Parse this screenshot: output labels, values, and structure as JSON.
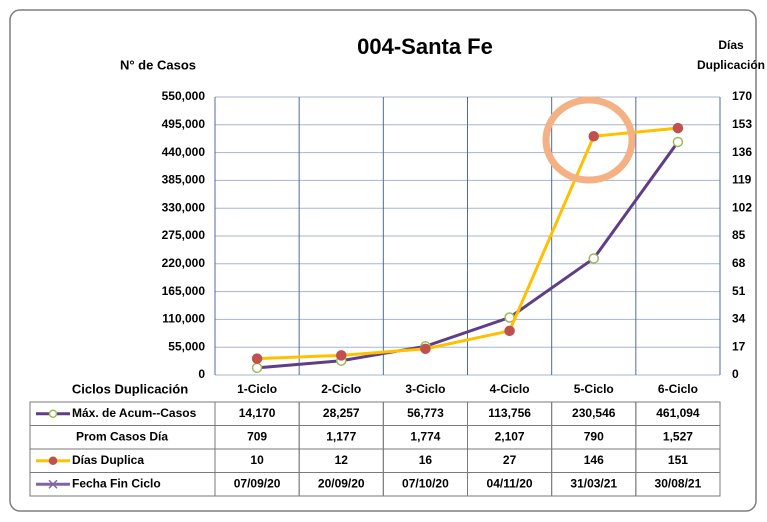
{
  "chart_data": {
    "type": "line",
    "title": "004-Santa Fe",
    "y_label": "N° de Casos",
    "y2_label": [
      "Días",
      "Duplicación"
    ],
    "table_header": "Ciclos Duplicación",
    "categories": [
      "1-Ciclo",
      "2-Ciclo",
      "3-Ciclo",
      "4-Ciclo",
      "5-Ciclo",
      "6-Ciclo"
    ],
    "ylim": [
      0,
      550000
    ],
    "yticks": [
      {
        "value": 0,
        "label": "0"
      },
      {
        "value": 55000,
        "label": "55,000"
      },
      {
        "value": 110000,
        "label": "110,000"
      },
      {
        "value": 165000,
        "label": "165,000"
      },
      {
        "value": 220000,
        "label": "220,000"
      },
      {
        "value": 275000,
        "label": "275,000"
      },
      {
        "value": 330000,
        "label": "330,000"
      },
      {
        "value": 385000,
        "label": "385,000"
      },
      {
        "value": 440000,
        "label": "440,000"
      },
      {
        "value": 495000,
        "label": "495,000"
      },
      {
        "value": 550000,
        "label": "550,000"
      }
    ],
    "y2lim": [
      0,
      170
    ],
    "y2ticks": [
      0,
      17,
      34,
      51,
      68,
      85,
      102,
      119,
      136,
      153,
      170
    ],
    "series": [
      {
        "name": "Máx. de Acum--Casos",
        "color": "#5e3f86",
        "marker_color": "#9bbb59",
        "axis": "y",
        "values": [
          14170,
          28257,
          56773,
          113756,
          230546,
          461094
        ],
        "value_labels": [
          "14,170",
          "28,257",
          "56,773",
          "113,756",
          "230,546",
          "461,094"
        ]
      },
      {
        "name": "Prom Casos Día",
        "values": [
          709,
          1177,
          1774,
          2107,
          790,
          1527
        ],
        "value_labels": [
          "709",
          "1,177",
          "1,774",
          "2,107",
          "790",
          "1,527"
        ]
      },
      {
        "name": "Días Duplica",
        "color": "#ffc000",
        "marker_color": "#c0504d",
        "axis": "y2",
        "values": [
          10,
          12,
          16,
          27,
          146,
          151
        ]
      },
      {
        "name": "Fecha Fin Ciclo",
        "color": "#8064a2",
        "values": [
          "07/09/20",
          "20/09/20",
          "07/10/20",
          "04/11/20",
          "31/03/21",
          "30/08/21"
        ]
      }
    ]
  }
}
